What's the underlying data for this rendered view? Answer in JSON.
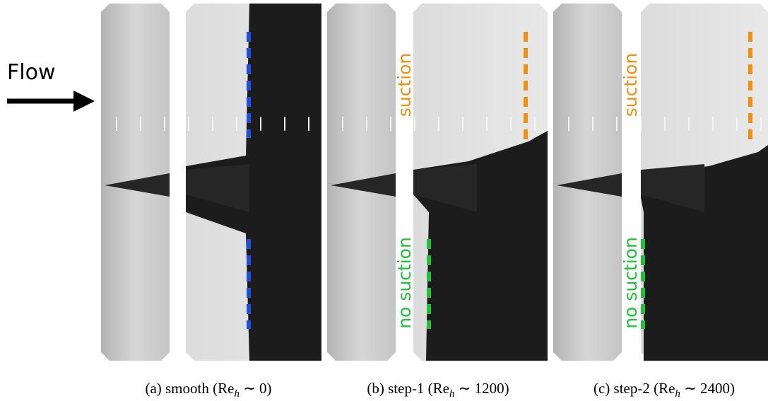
{
  "flow_label": "Flow",
  "panels": [
    {
      "caption": {
        "prefix": "(a) smooth (Re",
        "subscript": "h",
        "suffix": " ∼ 0)"
      }
    },
    {
      "caption": {
        "prefix": "(b) step-1 (Re",
        "subscript": "h",
        "suffix": " ∼ 1200)"
      },
      "upper_label": "suction",
      "lower_label": "no suction"
    },
    {
      "caption": {
        "prefix": "(c) step-2 (Re",
        "subscript": "h",
        "suffix": " ∼ 2400)"
      },
      "upper_label": "suction",
      "lower_label": "no suction"
    }
  ]
}
